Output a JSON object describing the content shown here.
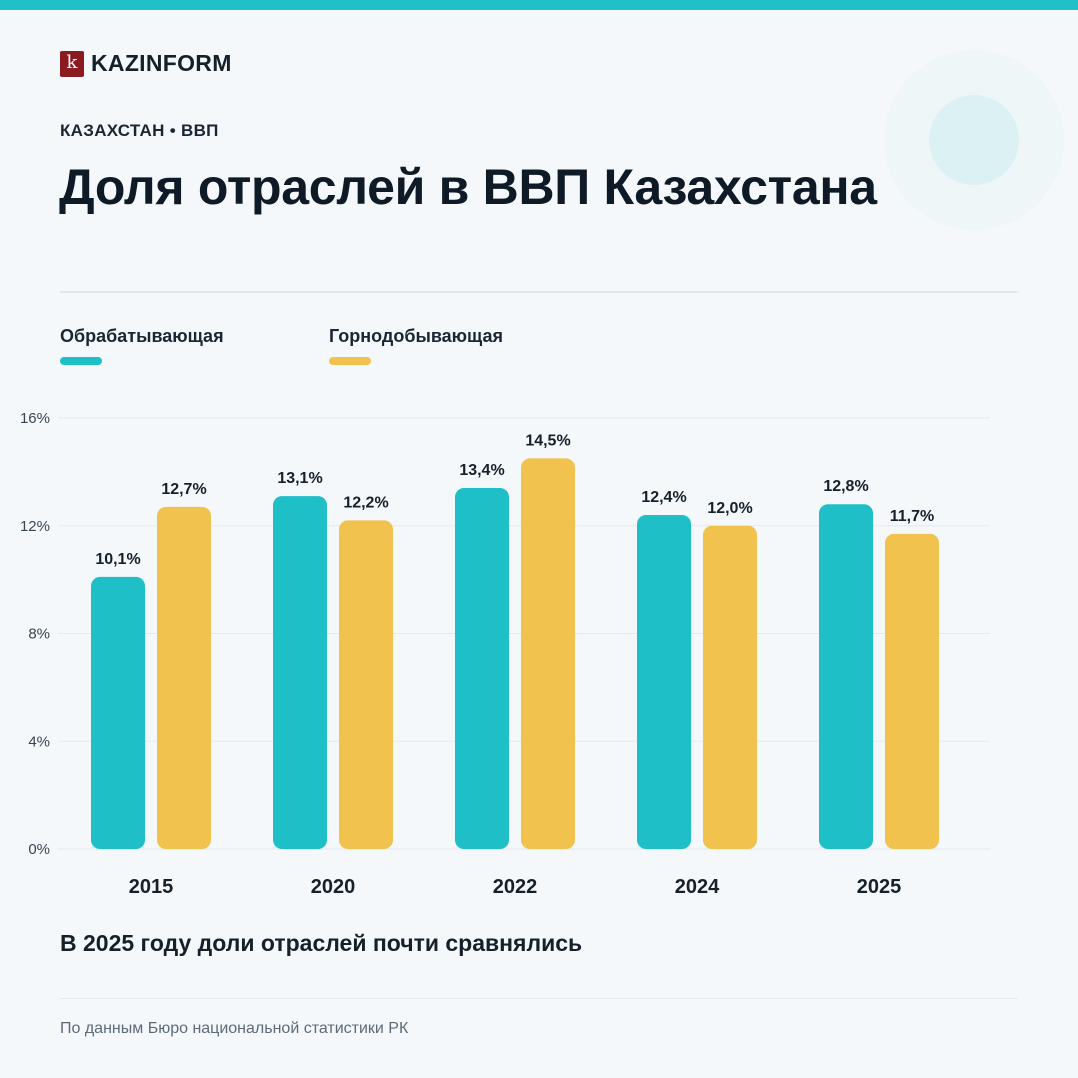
{
  "brand": {
    "logo_letter": "k",
    "name": "KAZINFORM",
    "accent": "#21c0c8",
    "logo_color": "#8c1a21"
  },
  "header": {
    "kicker": "КАЗАХСТАН • ВВП",
    "title": "Доля отраслей в ВВП Казахстана"
  },
  "legend": [
    {
      "label": "Обрабатывающая",
      "color": "#1fbfc7"
    },
    {
      "label": "Горнодобывающая",
      "color": "#f1c24d"
    }
  ],
  "chart_data": {
    "type": "bar",
    "categories": [
      "2015",
      "2020",
      "2022",
      "2024",
      "2025"
    ],
    "series": [
      {
        "name": "Обрабатывающая",
        "color": "#1fbfc7",
        "values": [
          10.1,
          13.1,
          13.4,
          12.4,
          12.8
        ],
        "labels": [
          "10,1%",
          "13,1%",
          "13,4%",
          "12,4%",
          "12,8%"
        ]
      },
      {
        "name": "Горнодобывающая",
        "color": "#f1c24d",
        "values": [
          12.7,
          12.2,
          14.5,
          12.0,
          11.7
        ],
        "labels": [
          "12,7%",
          "12,2%",
          "14,5%",
          "12,0%",
          "11,7%"
        ]
      }
    ],
    "yticks": [
      0,
      4,
      8,
      12,
      16
    ],
    "ytick_labels": [
      "0%",
      "4%",
      "8%",
      "12%",
      "16%"
    ],
    "ylim": [
      0,
      16
    ],
    "grid": true,
    "legend_position": "top-left"
  },
  "footer": {
    "conclusion": "В 2025 году доли отраслей почти сравнялись",
    "source": "По данным Бюро национальной статистики РК"
  }
}
